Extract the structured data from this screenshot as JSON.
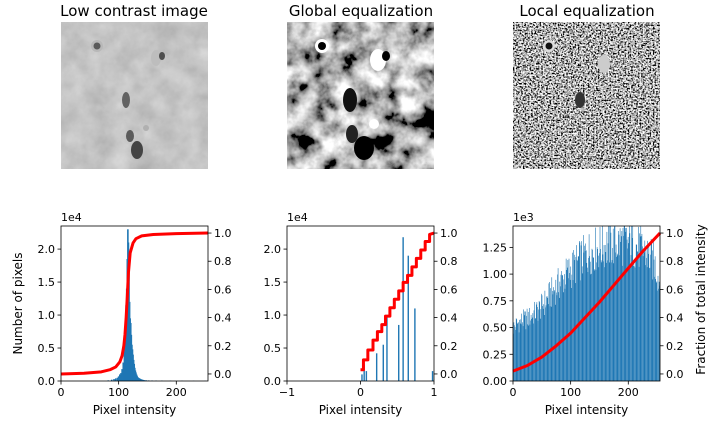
{
  "chart_data": [
    {
      "type": "image",
      "title": "Low contrast image",
      "style": "low-contrast",
      "colors": {
        "dark": "#5f5f5f",
        "light": "#a9a9a9"
      }
    },
    {
      "type": "image",
      "title": "Global equalization",
      "style": "global-equalized",
      "colors": {
        "dark": "#000000",
        "light": "#ffffff"
      }
    },
    {
      "type": "image",
      "title": "Local equalization",
      "style": "local-equalized",
      "colors": {
        "dark": "#000000",
        "light": "#ffffff"
      }
    },
    {
      "type": "bar",
      "subtype": "histogram-with-cdf",
      "xlabel": "Pixel intensity",
      "ylabel": "Number of pixels",
      "y_multiplier": "1e4",
      "xlim": [
        0,
        255
      ],
      "ylim": [
        0,
        2.35
      ],
      "xticks": [
        "0",
        "100",
        "200"
      ],
      "yticks": [
        "0.0",
        "0.5",
        "1.0",
        "1.5",
        "2.0"
      ],
      "y2lim": [
        -0.05,
        1.05
      ],
      "y2ticks": [
        "0.0",
        "0.2",
        "0.4",
        "0.6",
        "0.8",
        "1.0"
      ],
      "series": [
        {
          "type": "bar",
          "color": "#1f77b4",
          "x": [
            82,
            88,
            92,
            95,
            98,
            100,
            102,
            104,
            106,
            108,
            110,
            111,
            112,
            113,
            114,
            115,
            116,
            117,
            118,
            119,
            120,
            121,
            122,
            123,
            124,
            125,
            126,
            127,
            128,
            129,
            130,
            131,
            132,
            133,
            134,
            135,
            136,
            137,
            138,
            139,
            140,
            141,
            142,
            143,
            145,
            148,
            152,
            158,
            165,
            175,
            190,
            210,
            230,
            250
          ],
          "values": [
            0.01,
            0.02,
            0.03,
            0.04,
            0.05,
            0.07,
            0.1,
            0.12,
            0.18,
            0.28,
            0.45,
            0.6,
            0.85,
            1.15,
            1.4,
            1.85,
            2.3,
            2.1,
            1.65,
            1.2,
            0.95,
            0.88,
            0.7,
            0.55,
            0.48,
            0.4,
            0.32,
            0.26,
            0.2,
            0.16,
            0.13,
            0.1,
            0.08,
            0.06,
            0.05,
            0.045,
            0.04,
            0.035,
            0.03,
            0.026,
            0.022,
            0.02,
            0.018,
            0.015,
            0.013,
            0.011,
            0.009,
            0.008,
            0.007,
            0.006,
            0.005,
            0.004,
            0.003,
            0.003
          ]
        },
        {
          "type": "line",
          "axis": "right",
          "color": "#ff0000",
          "x": [
            0,
            40,
            70,
            85,
            95,
            102,
            106,
            109,
            111,
            113,
            115,
            117,
            120,
            125,
            130,
            140,
            160,
            200,
            255
          ],
          "values": [
            0.0,
            0.005,
            0.015,
            0.03,
            0.05,
            0.085,
            0.13,
            0.2,
            0.28,
            0.4,
            0.55,
            0.72,
            0.86,
            0.93,
            0.96,
            0.98,
            0.99,
            0.996,
            1.0
          ]
        }
      ]
    },
    {
      "type": "bar",
      "subtype": "histogram-with-cdf",
      "xlabel": "Pixel intensity",
      "ylabel": "",
      "y_multiplier": "1e4",
      "xlim": [
        -1,
        1
      ],
      "ylim": [
        0,
        2.35
      ],
      "xticks": [
        "−1",
        "0",
        "1"
      ],
      "yticks": [
        "0.0",
        "0.5",
        "1.0",
        "1.5",
        "2.0"
      ],
      "y2lim": [
        -0.05,
        1.05
      ],
      "y2ticks": [
        "0.0",
        "0.2",
        "0.4",
        "0.6",
        "0.8",
        "1.0"
      ],
      "series": [
        {
          "type": "bar",
          "color": "#1f77b4",
          "x": [
            0.02,
            0.05,
            0.08,
            0.22,
            0.31,
            0.36,
            0.52,
            0.58,
            0.65,
            0.74,
            0.98
          ],
          "values": [
            0.1,
            0.25,
            0.15,
            0.42,
            0.55,
            1.0,
            0.85,
            2.18,
            1.9,
            1.1,
            0.15
          ]
        },
        {
          "type": "line",
          "axis": "right",
          "color": "#ff0000",
          "x": [
            0,
            0.04,
            0.04,
            0.1,
            0.1,
            0.17,
            0.17,
            0.23,
            0.23,
            0.29,
            0.29,
            0.34,
            0.34,
            0.4,
            0.4,
            0.46,
            0.46,
            0.52,
            0.52,
            0.58,
            0.58,
            0.64,
            0.64,
            0.7,
            0.7,
            0.76,
            0.76,
            0.82,
            0.82,
            0.88,
            0.88,
            0.94,
            0.94,
            1.0
          ],
          "values": [
            0.03,
            0.03,
            0.1,
            0.1,
            0.17,
            0.17,
            0.24,
            0.24,
            0.3,
            0.3,
            0.35,
            0.35,
            0.41,
            0.41,
            0.47,
            0.47,
            0.53,
            0.53,
            0.59,
            0.59,
            0.65,
            0.65,
            0.7,
            0.7,
            0.76,
            0.76,
            0.82,
            0.82,
            0.88,
            0.88,
            0.94,
            0.94,
            0.99,
            1.0
          ]
        }
      ]
    },
    {
      "type": "bar",
      "subtype": "histogram-with-cdf",
      "xlabel": "Pixel intensity",
      "ylabel": "Fraction of total intensity",
      "y_multiplier": "1e3",
      "xlim": [
        0,
        255
      ],
      "ylim": [
        0,
        1.45
      ],
      "xticks": [
        "0",
        "100",
        "200"
      ],
      "yticks": [
        "0.00",
        "0.25",
        "0.50",
        "0.75",
        "1.00",
        "1.25"
      ],
      "y2lim": [
        -0.05,
        1.05
      ],
      "y2ticks": [
        "0.0",
        "0.2",
        "0.4",
        "0.6",
        "0.8",
        "1.0"
      ],
      "series": [
        {
          "type": "bar",
          "color": "#1f77b4",
          "bins": 256,
          "x_start": 0,
          "x_end": 255,
          "envelope_x": [
            0,
            10,
            30,
            50,
            70,
            90,
            110,
            130,
            150,
            170,
            190,
            210,
            230,
            245,
            255
          ],
          "envelope_values": [
            0.5,
            0.55,
            0.6,
            0.7,
            0.85,
            0.98,
            1.1,
            1.2,
            1.25,
            1.28,
            1.3,
            1.27,
            1.2,
            1.1,
            0.9
          ]
        },
        {
          "type": "line",
          "axis": "right",
          "color": "#ff0000",
          "x": [
            0,
            25,
            50,
            75,
            100,
            125,
            150,
            175,
            200,
            225,
            255
          ],
          "values": [
            0.02,
            0.06,
            0.12,
            0.2,
            0.29,
            0.4,
            0.51,
            0.63,
            0.75,
            0.87,
            1.0
          ]
        }
      ]
    }
  ]
}
